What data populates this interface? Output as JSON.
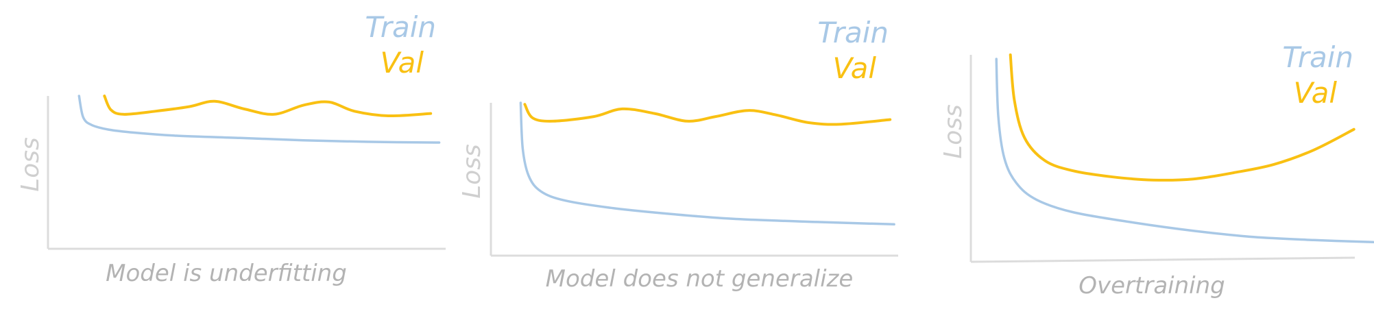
{
  "chart_data": [
    {
      "type": "line",
      "title": "",
      "xlabel": "Model is underfitting",
      "ylabel": "Loss",
      "legend": {
        "placement": "top-right",
        "entries": [
          "Train",
          "Val"
        ]
      },
      "grid": false,
      "xlim": [
        0,
        10
      ],
      "ylim": [
        0,
        10
      ],
      "series": [
        {
          "name": "Train",
          "color": "#a8c8e6",
          "x": [
            0.7,
            0.8,
            1.0,
            1.4,
            2.0,
            3.0,
            4.5,
            6.0,
            7.5,
            9.2
          ],
          "y": [
            10.0,
            8.6,
            8.1,
            7.8,
            7.6,
            7.4,
            7.25,
            7.1,
            7.0,
            6.95
          ]
        },
        {
          "name": "Val",
          "color": "#f9c012",
          "x": [
            1.3,
            1.45,
            1.75,
            2.5,
            3.3,
            3.9,
            4.6,
            5.3,
            6.0,
            6.6,
            7.2,
            8.0,
            9.0
          ],
          "y": [
            10.0,
            9.1,
            8.8,
            9.0,
            9.3,
            9.65,
            9.15,
            8.8,
            9.4,
            9.6,
            9.0,
            8.7,
            8.85
          ]
        }
      ]
    },
    {
      "type": "line",
      "title": "",
      "xlabel": "Model does not generalize",
      "ylabel": "Loss",
      "legend": {
        "placement": "top-right",
        "entries": [
          "Train",
          "Val"
        ]
      },
      "grid": false,
      "xlim": [
        0,
        10
      ],
      "ylim": [
        0,
        10
      ],
      "series": [
        {
          "name": "Train",
          "color": "#a8c8e6",
          "x": [
            0.7,
            0.75,
            0.9,
            1.2,
            1.8,
            3.0,
            4.5,
            6.0,
            8.0,
            9.9
          ],
          "y": [
            10.0,
            7.0,
            5.2,
            4.2,
            3.6,
            3.1,
            2.7,
            2.4,
            2.2,
            2.05
          ]
        },
        {
          "name": "Val",
          "color": "#f9c012",
          "x": [
            0.8,
            1.0,
            1.5,
            2.5,
            3.2,
            4.0,
            4.8,
            5.5,
            6.3,
            7.0,
            7.8,
            8.6,
            9.8
          ],
          "y": [
            9.9,
            9.0,
            8.8,
            9.1,
            9.6,
            9.3,
            8.8,
            9.1,
            9.5,
            9.2,
            8.7,
            8.6,
            8.9
          ]
        }
      ]
    },
    {
      "type": "line",
      "title": "",
      "xlabel": "Overtraining",
      "ylabel": "Loss",
      "legend": {
        "placement": "top-right",
        "entries": [
          "Train",
          "Val"
        ]
      },
      "grid": false,
      "xlim": [
        0,
        10
      ],
      "ylim": [
        0,
        10
      ],
      "series": [
        {
          "name": "Train",
          "color": "#a8c8e6",
          "x": [
            0.6,
            0.65,
            0.8,
            1.1,
            1.6,
            2.5,
            4.0,
            5.5,
            7.0,
            8.5,
            10.0
          ],
          "y": [
            9.8,
            7.0,
            5.0,
            3.8,
            3.0,
            2.4,
            1.9,
            1.5,
            1.2,
            1.05,
            0.95
          ]
        },
        {
          "name": "Val",
          "color": "#f9c012",
          "x": [
            0.95,
            1.05,
            1.3,
            1.8,
            2.5,
            3.5,
            4.5,
            5.5,
            6.5,
            7.5,
            8.5,
            9.5
          ],
          "y": [
            10.0,
            7.8,
            6.0,
            4.9,
            4.4,
            4.1,
            3.95,
            4.0,
            4.3,
            4.7,
            5.4,
            6.4
          ]
        }
      ]
    }
  ]
}
